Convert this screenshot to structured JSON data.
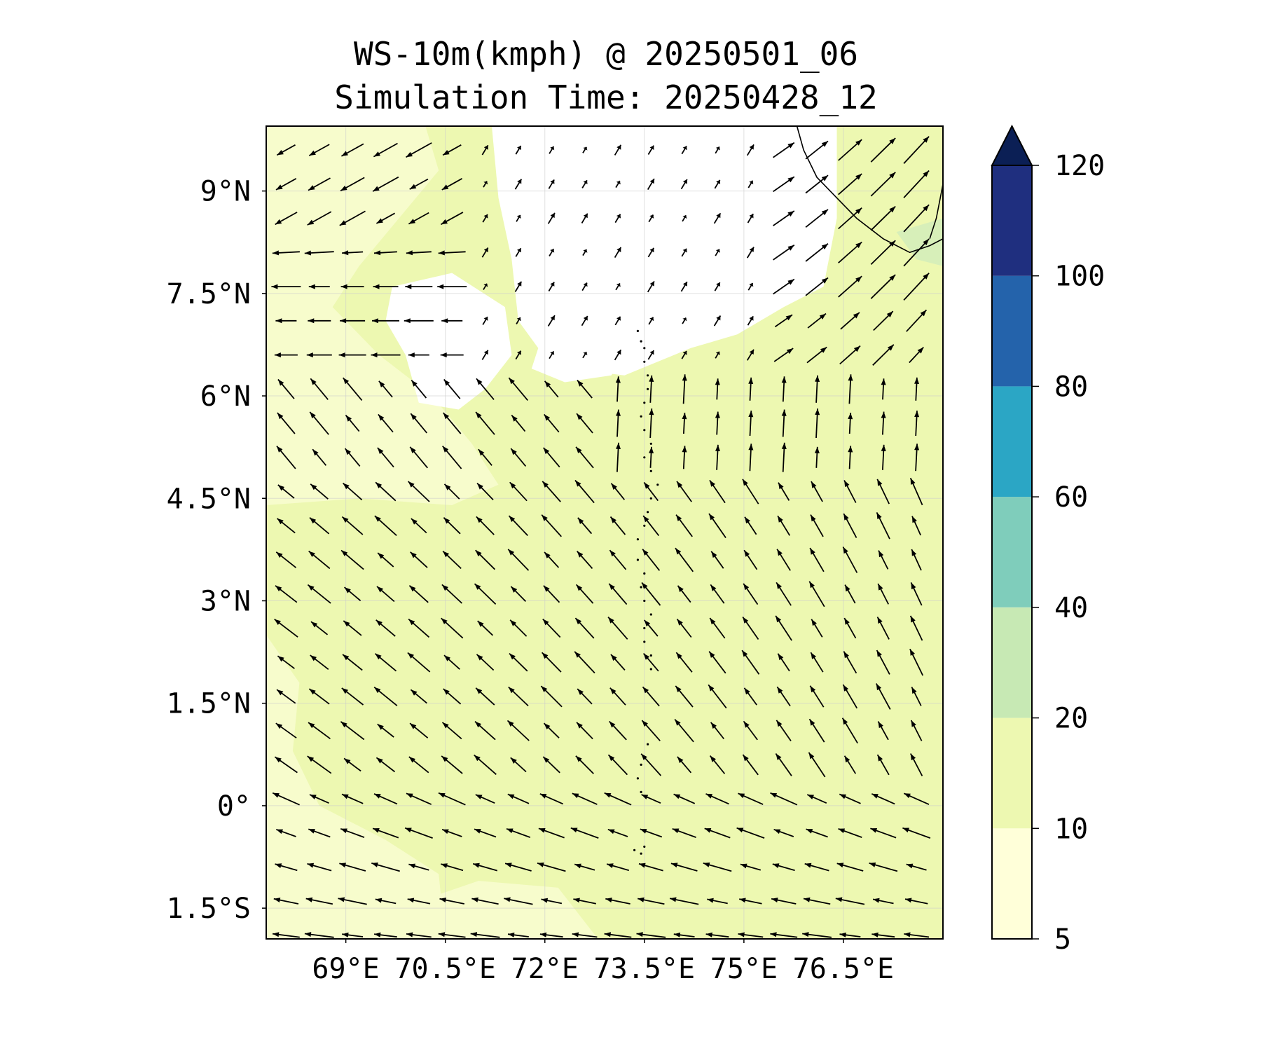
{
  "title": {
    "line1": "WS-10m(kmph) @ 20250501_06",
    "line2": "Simulation Time: 20250428_12"
  },
  "map": {
    "lon_range": [
      67.8,
      78.0
    ],
    "lat_range": [
      -1.95,
      9.95
    ],
    "x_ticks": [
      {
        "value": 69.0,
        "label": "69°E"
      },
      {
        "value": 70.5,
        "label": "70.5°E"
      },
      {
        "value": 72.0,
        "label": "72°E"
      },
      {
        "value": 73.5,
        "label": "73.5°E"
      },
      {
        "value": 75.0,
        "label": "75°E"
      },
      {
        "value": 76.5,
        "label": "76.5°E"
      }
    ],
    "y_ticks": [
      {
        "value": 9.0,
        "label": "9°N"
      },
      {
        "value": 7.5,
        "label": "7.5°N"
      },
      {
        "value": 6.0,
        "label": "6°N"
      },
      {
        "value": 4.5,
        "label": "4.5°N"
      },
      {
        "value": 3.0,
        "label": "3°N"
      },
      {
        "value": 1.5,
        "label": "1.5°N"
      },
      {
        "value": 0.0,
        "label": "0°"
      },
      {
        "value": -1.5,
        "label": "1.5°S"
      }
    ],
    "gridlines": true,
    "field": "wind speed at 10 m (km/h) with wind direction vectors",
    "background_band": "10-20",
    "calm_region": {
      "label_band": "below 5",
      "lon_range": [
        71.5,
        76.4
      ],
      "lat_range": [
        6.4,
        9.95
      ]
    }
  },
  "colorbar": {
    "ticks": [
      "5",
      "10",
      "20",
      "40",
      "60",
      "80",
      "100",
      "120"
    ],
    "bands": [
      {
        "from": 5,
        "to": 10,
        "color": "#ffffd9"
      },
      {
        "from": 10,
        "to": 20,
        "color": "#edf8b1"
      },
      {
        "from": 20,
        "to": 40,
        "color": "#c7e9b4"
      },
      {
        "from": 40,
        "to": 60,
        "color": "#7fcdbb"
      },
      {
        "from": 60,
        "to": 80,
        "color": "#2ba6c5"
      },
      {
        "from": 80,
        "to": 100,
        "color": "#2463ab"
      },
      {
        "from": 100,
        "to": 120,
        "color": "#1f2f7f"
      }
    ],
    "extend_color": "#0b1f55",
    "extend": "max"
  },
  "colors": {
    "pale": "#f7fccc",
    "light": "#edf8b1",
    "calm": "#ffffff",
    "coast": "#000000",
    "arrow": "#000000"
  }
}
